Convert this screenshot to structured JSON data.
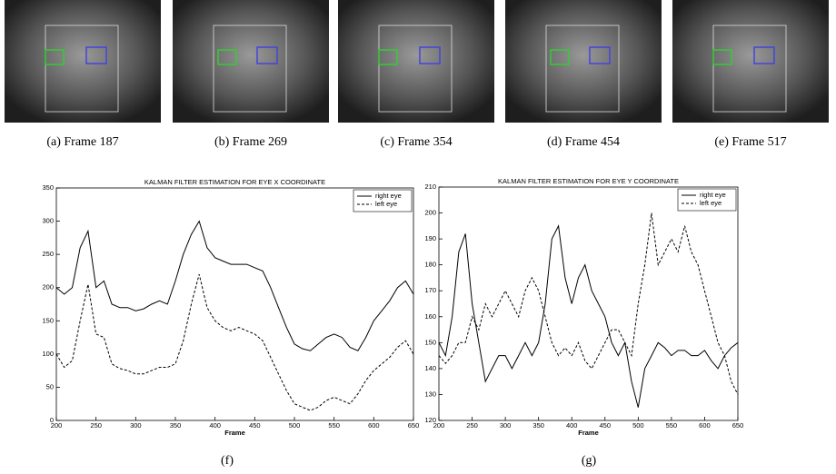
{
  "panels": [
    {
      "caption": "(a) Frame 187"
    },
    {
      "caption": "(b) Frame 269"
    },
    {
      "caption": "(c) Frame 354"
    },
    {
      "caption": "(d) Frame 454"
    },
    {
      "caption": "(e) Frame 517"
    }
  ],
  "chart_data": [
    {
      "type": "line",
      "title": "KALMAN FILTER ESTIMATION FOR EYE X COORDINATE",
      "x_label": "Frame",
      "caption": "(f)",
      "x": [
        200,
        210,
        220,
        230,
        240,
        250,
        260,
        270,
        280,
        290,
        300,
        310,
        320,
        330,
        340,
        350,
        360,
        370,
        380,
        390,
        400,
        410,
        420,
        430,
        440,
        450,
        460,
        470,
        480,
        490,
        500,
        510,
        520,
        530,
        540,
        550,
        560,
        570,
        580,
        590,
        600,
        610,
        620,
        630,
        640,
        650
      ],
      "series": [
        {
          "name": "right eye",
          "color": "#000000",
          "style": "solid",
          "values": [
            200,
            190,
            200,
            260,
            285,
            200,
            210,
            175,
            170,
            170,
            165,
            168,
            175,
            180,
            175,
            210,
            250,
            280,
            300,
            260,
            245,
            240,
            235,
            235,
            235,
            230,
            225,
            200,
            170,
            140,
            115,
            108,
            105,
            115,
            125,
            130,
            125,
            110,
            105,
            125,
            150,
            165,
            180,
            200,
            210,
            190
          ]
        },
        {
          "name": "left eye",
          "color": "#000000",
          "style": "dashed",
          "values": [
            100,
            80,
            90,
            150,
            205,
            130,
            125,
            85,
            78,
            75,
            70,
            70,
            75,
            80,
            80,
            85,
            120,
            175,
            220,
            170,
            150,
            140,
            135,
            140,
            135,
            130,
            120,
            95,
            70,
            45,
            25,
            20,
            15,
            20,
            30,
            35,
            30,
            25,
            40,
            60,
            75,
            85,
            95,
            110,
            120,
            100
          ]
        }
      ],
      "xlim": [
        200,
        650
      ],
      "xticks": [
        200,
        250,
        300,
        350,
        400,
        450,
        500,
        550,
        600,
        650
      ],
      "ylim": [
        0,
        350
      ],
      "yticks": [
        0,
        50,
        100,
        150,
        200,
        250,
        300,
        350
      ],
      "legend": "upper right",
      "grid": false
    },
    {
      "type": "line",
      "title": "KALMAN FILTER ESTIMATION FOR EYE Y COORDINATE",
      "x_label": "Frame",
      "caption": "(g)",
      "x": [
        200,
        210,
        220,
        230,
        240,
        250,
        260,
        270,
        280,
        290,
        300,
        310,
        320,
        330,
        340,
        350,
        360,
        370,
        380,
        390,
        400,
        410,
        420,
        430,
        440,
        450,
        460,
        470,
        480,
        490,
        500,
        510,
        520,
        530,
        540,
        550,
        560,
        570,
        580,
        590,
        600,
        610,
        620,
        630,
        640,
        650
      ],
      "series": [
        {
          "name": "right eye",
          "color": "#000000",
          "style": "solid",
          "values": [
            150,
            145,
            160,
            185,
            192,
            165,
            150,
            135,
            140,
            145,
            145,
            140,
            145,
            150,
            145,
            150,
            165,
            190,
            195,
            175,
            165,
            175,
            180,
            170,
            165,
            160,
            150,
            145,
            150,
            135,
            125,
            140,
            145,
            150,
            148,
            145,
            147,
            147,
            145,
            145,
            147,
            143,
            140,
            145,
            148,
            150
          ]
        },
        {
          "name": "left eye",
          "color": "#000000",
          "style": "dashed",
          "values": [
            145,
            142,
            145,
            150,
            150,
            160,
            155,
            165,
            160,
            165,
            170,
            165,
            160,
            170,
            175,
            170,
            160,
            150,
            145,
            148,
            145,
            150,
            143,
            140,
            145,
            150,
            155,
            155,
            150,
            145,
            165,
            180,
            200,
            180,
            185,
            190,
            185,
            195,
            185,
            180,
            170,
            160,
            150,
            145,
            135,
            130
          ]
        }
      ],
      "xlim": [
        200,
        650
      ],
      "xticks": [
        200,
        250,
        300,
        350,
        400,
        450,
        500,
        550,
        600,
        650
      ],
      "ylim": [
        120,
        210
      ],
      "yticks": [
        120,
        130,
        140,
        150,
        160,
        170,
        180,
        190,
        200,
        210
      ],
      "legend": "upper right",
      "grid": false
    }
  ]
}
